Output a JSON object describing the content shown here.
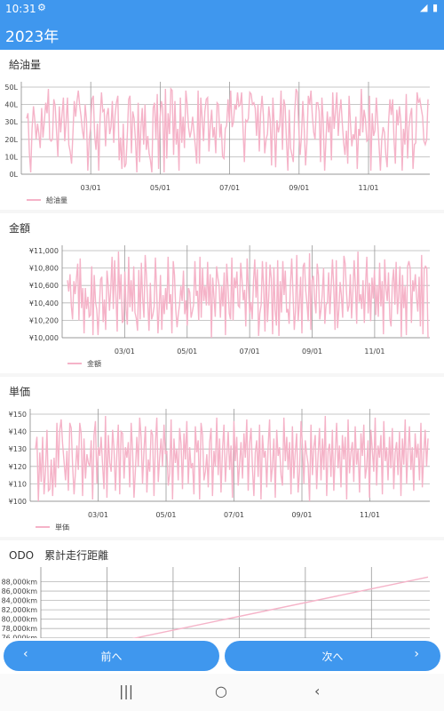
{
  "status": {
    "time": "10:31",
    "settings_icon": "gear-icon",
    "right_icons": "◢ ▮"
  },
  "app": {
    "title": "2023年",
    "accent": "#3f97ee"
  },
  "sections": {
    "fuel": {
      "title": "給油量"
    },
    "amount": {
      "title": "金額"
    },
    "unit_price": {
      "title": "単価"
    },
    "odo": {
      "title": "ODO　累計走行距離"
    }
  },
  "buttons": {
    "prev_label": "前へ",
    "next_label": "次へ",
    "prev_icon": "‹",
    "next_icon": "›"
  },
  "system_nav": {
    "recent": "|||",
    "home": "○",
    "back": "‹"
  },
  "chart_data": [
    {
      "type": "line",
      "title": "給油量",
      "line_color": "#f5b3c8",
      "y_ticks": [
        "0L",
        "10L",
        "20L",
        "30L",
        "40L",
        "50L"
      ],
      "ylim": [
        0,
        50
      ],
      "x_ticks": [
        "03/01",
        "05/01",
        "07/01",
        "09/01",
        "11/01"
      ],
      "series": [
        {
          "name": "給油量",
          "values": [
            32,
            35,
            12,
            1,
            26,
            39,
            31,
            20,
            29,
            23,
            15,
            38,
            21,
            30,
            41,
            35,
            49,
            20,
            19,
            20,
            43,
            39,
            24,
            10,
            39,
            24,
            34,
            44,
            19,
            30,
            44,
            17,
            13,
            6,
            23,
            42,
            33,
            42,
            48,
            39,
            33,
            25,
            20,
            40,
            31,
            2,
            20,
            27,
            43,
            45,
            22,
            14,
            29,
            2,
            32,
            47,
            36,
            37,
            16,
            34,
            38,
            23,
            27,
            42,
            18,
            34,
            41,
            45,
            8,
            21,
            3,
            29,
            4,
            6,
            23,
            43,
            45,
            12,
            36,
            32,
            19,
            1,
            41,
            7,
            27,
            38,
            17,
            40,
            14,
            22,
            12,
            8,
            1,
            38,
            41,
            20,
            46,
            3,
            32,
            42,
            38,
            1,
            49,
            9,
            35,
            23,
            49,
            48,
            11,
            42,
            17,
            26,
            2,
            44,
            18,
            33,
            15,
            48,
            40,
            27,
            21,
            25,
            33,
            24,
            16,
            6,
            48,
            6,
            44,
            32,
            19,
            36,
            43,
            44,
            13,
            28,
            37,
            21,
            27,
            12,
            41,
            40,
            21,
            29,
            10,
            9,
            26,
            28,
            43,
            30,
            48,
            27,
            30,
            40,
            37,
            47,
            39,
            40,
            47,
            27,
            7,
            31,
            30,
            32,
            47,
            46,
            40,
            41,
            38,
            22,
            40,
            13,
            35,
            45,
            34,
            12,
            20,
            23,
            39,
            31,
            5,
            44,
            27,
            4,
            31,
            24,
            28,
            48,
            14,
            43,
            39,
            18,
            2,
            37,
            15,
            11,
            7,
            35,
            49,
            47,
            27,
            11,
            22,
            42,
            26,
            5,
            18,
            45,
            40,
            48,
            33,
            24,
            20,
            41,
            41,
            36,
            7,
            44,
            30,
            2,
            20,
            36,
            24,
            33,
            8,
            47,
            26,
            36,
            47,
            22,
            35,
            43,
            29,
            18,
            11,
            25,
            6,
            45,
            29,
            16,
            23,
            20,
            33,
            3,
            26,
            22,
            49,
            24,
            37,
            32,
            19,
            20,
            45,
            2,
            35,
            22,
            25,
            44,
            30,
            17,
            2,
            20,
            27,
            24,
            11,
            4,
            30,
            43,
            34,
            43,
            20,
            6,
            37,
            28,
            39,
            30,
            2,
            26,
            17,
            46,
            9,
            27,
            34,
            38,
            3,
            17,
            18,
            47,
            41,
            43,
            38,
            33,
            19,
            17,
            20,
            43
          ]
        }
      ]
    },
    {
      "type": "line",
      "title": "金額",
      "line_color": "#f5b3c8",
      "y_ticks": [
        "¥10,000",
        "¥10,200",
        "¥10,400",
        "¥10,600",
        "¥10,800",
        "¥11,000"
      ],
      "ylim": [
        10000,
        11000
      ],
      "x_ticks": [
        "03/01",
        "05/01",
        "07/01",
        "09/01",
        "11/01"
      ],
      "series": [
        {
          "name": "金額",
          "values": [
            10660,
            10530,
            10730,
            10370,
            10210,
            10650,
            10500,
            10670,
            10850,
            10200,
            10910,
            10340,
            10570,
            10050,
            10570,
            10330,
            10470,
            10240,
            10260,
            10820,
            10030,
            10720,
            10410,
            10320,
            10030,
            10350,
            10670,
            10700,
            10180,
            10440,
            10090,
            10770,
            10600,
            10310,
            10580,
            10930,
            10330,
            10890,
            10500,
            10070,
            10990,
            10440,
            10730,
            10170,
            10200,
            10760,
            10320,
            10150,
            10930,
            10350,
            10660,
            10300,
            10820,
            10290,
            10220,
            10080,
            10780,
            10210,
            10860,
            10460,
            10230,
            10950,
            10720,
            10400,
            10080,
            10630,
            10210,
            10260,
            10360,
            10920,
            10550,
            10050,
            10340,
            10720,
            10090,
            10490,
            10270,
            10570,
            10320,
            10930,
            10390,
            10500,
            10050,
            10880,
            10720,
            10330,
            10120,
            10270,
            10380,
            10590,
            10420,
            10770,
            10270,
            10430,
            10140,
            10570,
            10520,
            10230,
            10300,
            10380,
            10880,
            10480,
            10540,
            10200,
            10930,
            10230,
            10800,
            10420,
            10590,
            10370,
            10870,
            10370,
            10730,
            10000,
            10690,
            10460,
            10240,
            10820,
            10690,
            10600,
            10230,
            10590,
            10360,
            10750,
            10030,
            10850,
            10580,
            10280,
            10210,
            10920,
            10200,
            10690,
            10570,
            10760,
            10370,
            10350,
            10860,
            10670,
            10430,
            10550,
            10130,
            10910,
            10580,
            10280,
            10410,
            10210,
            10650,
            10900,
            10460,
            10790,
            10020,
            10280,
            10380,
            10880,
            10570,
            10070,
            10870,
            10180,
            10480,
            10840,
            10680,
            10040,
            10810,
            10320,
            10140,
            10890,
            10020,
            10650,
            10290,
            10880,
            10490,
            10770,
            10290,
            10330,
            10160,
            10620,
            10910,
            10520,
            10090,
            10310,
            10950,
            10190,
            10390,
            10700,
            10050,
            10820,
            10860,
            10540,
            10390,
            10190,
            10970,
            10090,
            10660,
            10710,
            10440,
            10280,
            10850,
            10720,
            10210,
            10320,
            10500,
            10800,
            10160,
            10380,
            10400,
            10750,
            10270,
            10600,
            10900,
            10580,
            10090,
            10890,
            10110,
            10320,
            10640,
            10490,
            10230,
            10940,
            10850,
            10520,
            10300,
            10370,
            10730,
            10220,
            10530,
            10890,
            10600,
            10160,
            10990,
            10410,
            10500,
            10330,
            10660,
            10170,
            10610,
            10930,
            10280,
            10630,
            10190,
            10690,
            10450,
            10780,
            10260,
            10600,
            10240,
            10860,
            10360,
            10650,
            10040,
            10900,
            10560,
            10420,
            10750,
            10220,
            10130,
            10630,
            10790,
            10380,
            10870,
            10270,
            10500,
            10820,
            10010,
            10720,
            10340,
            10590,
            10030,
            10820,
            10880,
            10800,
            10170,
            10660,
            10530,
            10730,
            10460,
            10300,
            10700,
            10130,
            10950,
            10040,
            10790,
            10820,
            10800,
            10000
          ]
        }
      ]
    },
    {
      "type": "line",
      "title": "単価",
      "line_color": "#f5b3c8",
      "y_ticks": [
        "¥100",
        "¥110",
        "¥120",
        "¥130",
        "¥140",
        "¥150"
      ],
      "ylim": [
        100,
        150
      ],
      "x_ticks": [
        "03/01",
        "05/01",
        "07/01",
        "09/01",
        "11/01"
      ],
      "series": [
        {
          "name": "単価",
          "values": [
            130,
            137,
            100,
            128,
            111,
            137,
            104,
            118,
            141,
            106,
            107,
            124,
            103,
            125,
            108,
            145,
            119,
            141,
            147,
            133,
            123,
            112,
            129,
            106,
            145,
            142,
            120,
            104,
            117,
            132,
            118,
            145,
            139,
            103,
            136,
            113,
            127,
            122,
            120,
            135,
            101,
            138,
            146,
            110,
            131,
            126,
            137,
            121,
            107,
            149,
            102,
            138,
            122,
            117,
            141,
            130,
            106,
            127,
            144,
            104,
            140,
            139,
            113,
            131,
            125,
            134,
            108,
            145,
            129,
            102,
            118,
            137,
            120,
            148,
            137,
            110,
            130,
            143,
            105,
            124,
            117,
            141,
            138,
            103,
            133,
            148,
            111,
            125,
            136,
            120,
            144,
            127,
            129,
            109,
            116,
            147,
            101,
            136,
            122,
            130,
            112,
            142,
            133,
            107,
            139,
            124,
            146,
            110,
            131,
            119,
            122,
            104,
            143,
            128,
            135,
            101,
            145,
            138,
            112,
            117,
            127,
            108,
            134,
            142,
            103,
            129,
            120,
            148,
            115,
            136,
            105,
            130,
            144,
            111,
            126,
            140,
            118,
            132,
            102,
            146,
            123,
            137,
            109,
            121,
            134,
            113,
            139,
            125,
            147,
            106,
            133,
            142,
            119,
            103,
            128,
            135,
            114,
            144,
            101,
            138,
            125,
            129,
            108,
            132,
            147,
            111,
            120,
            136,
            102,
            141,
            126,
            131,
            115,
            109,
            148,
            123,
            137,
            118,
            134,
            104,
            143,
            113,
            128,
            139,
            105,
            117,
            146,
            132,
            110,
            135,
            127,
            121,
            100,
            144,
            115,
            131,
            138,
            107,
            126,
            142,
            112,
            136,
            118,
            149,
            103,
            129,
            133,
            114,
            141,
            106,
            127,
            145,
            119,
            132,
            108,
            138,
            124,
            137,
            101,
            147,
            116,
            128,
            134,
            111,
            143,
            121,
            130,
            105,
            139,
            126,
            144,
            113,
            120,
            135,
            102,
            141,
            129,
            117,
            148,
            109,
            132,
            125,
            138,
            104,
            146,
            123,
            131,
            112,
            137,
            119,
            142,
            107,
            128,
            134,
            115,
            140,
            103,
            136,
            121,
            147,
            110,
            129,
            143,
            118,
            131,
            106,
            139,
            125,
            133,
            112,
            145,
            108,
            127,
            141,
            120,
            136
          ]
        }
      ]
    },
    {
      "type": "line",
      "title": "ODO　累計走行距離",
      "line_color": "#f5b3c8",
      "y_ticks": [
        "76,000km",
        "78,000km",
        "80,000km",
        "82,000km",
        "84,000km",
        "86,000km",
        "88,000km"
      ],
      "ylim": [
        75000,
        90000
      ],
      "series": [
        {
          "name": "ODO",
          "values": [
            72000,
            89000
          ]
        }
      ]
    }
  ]
}
